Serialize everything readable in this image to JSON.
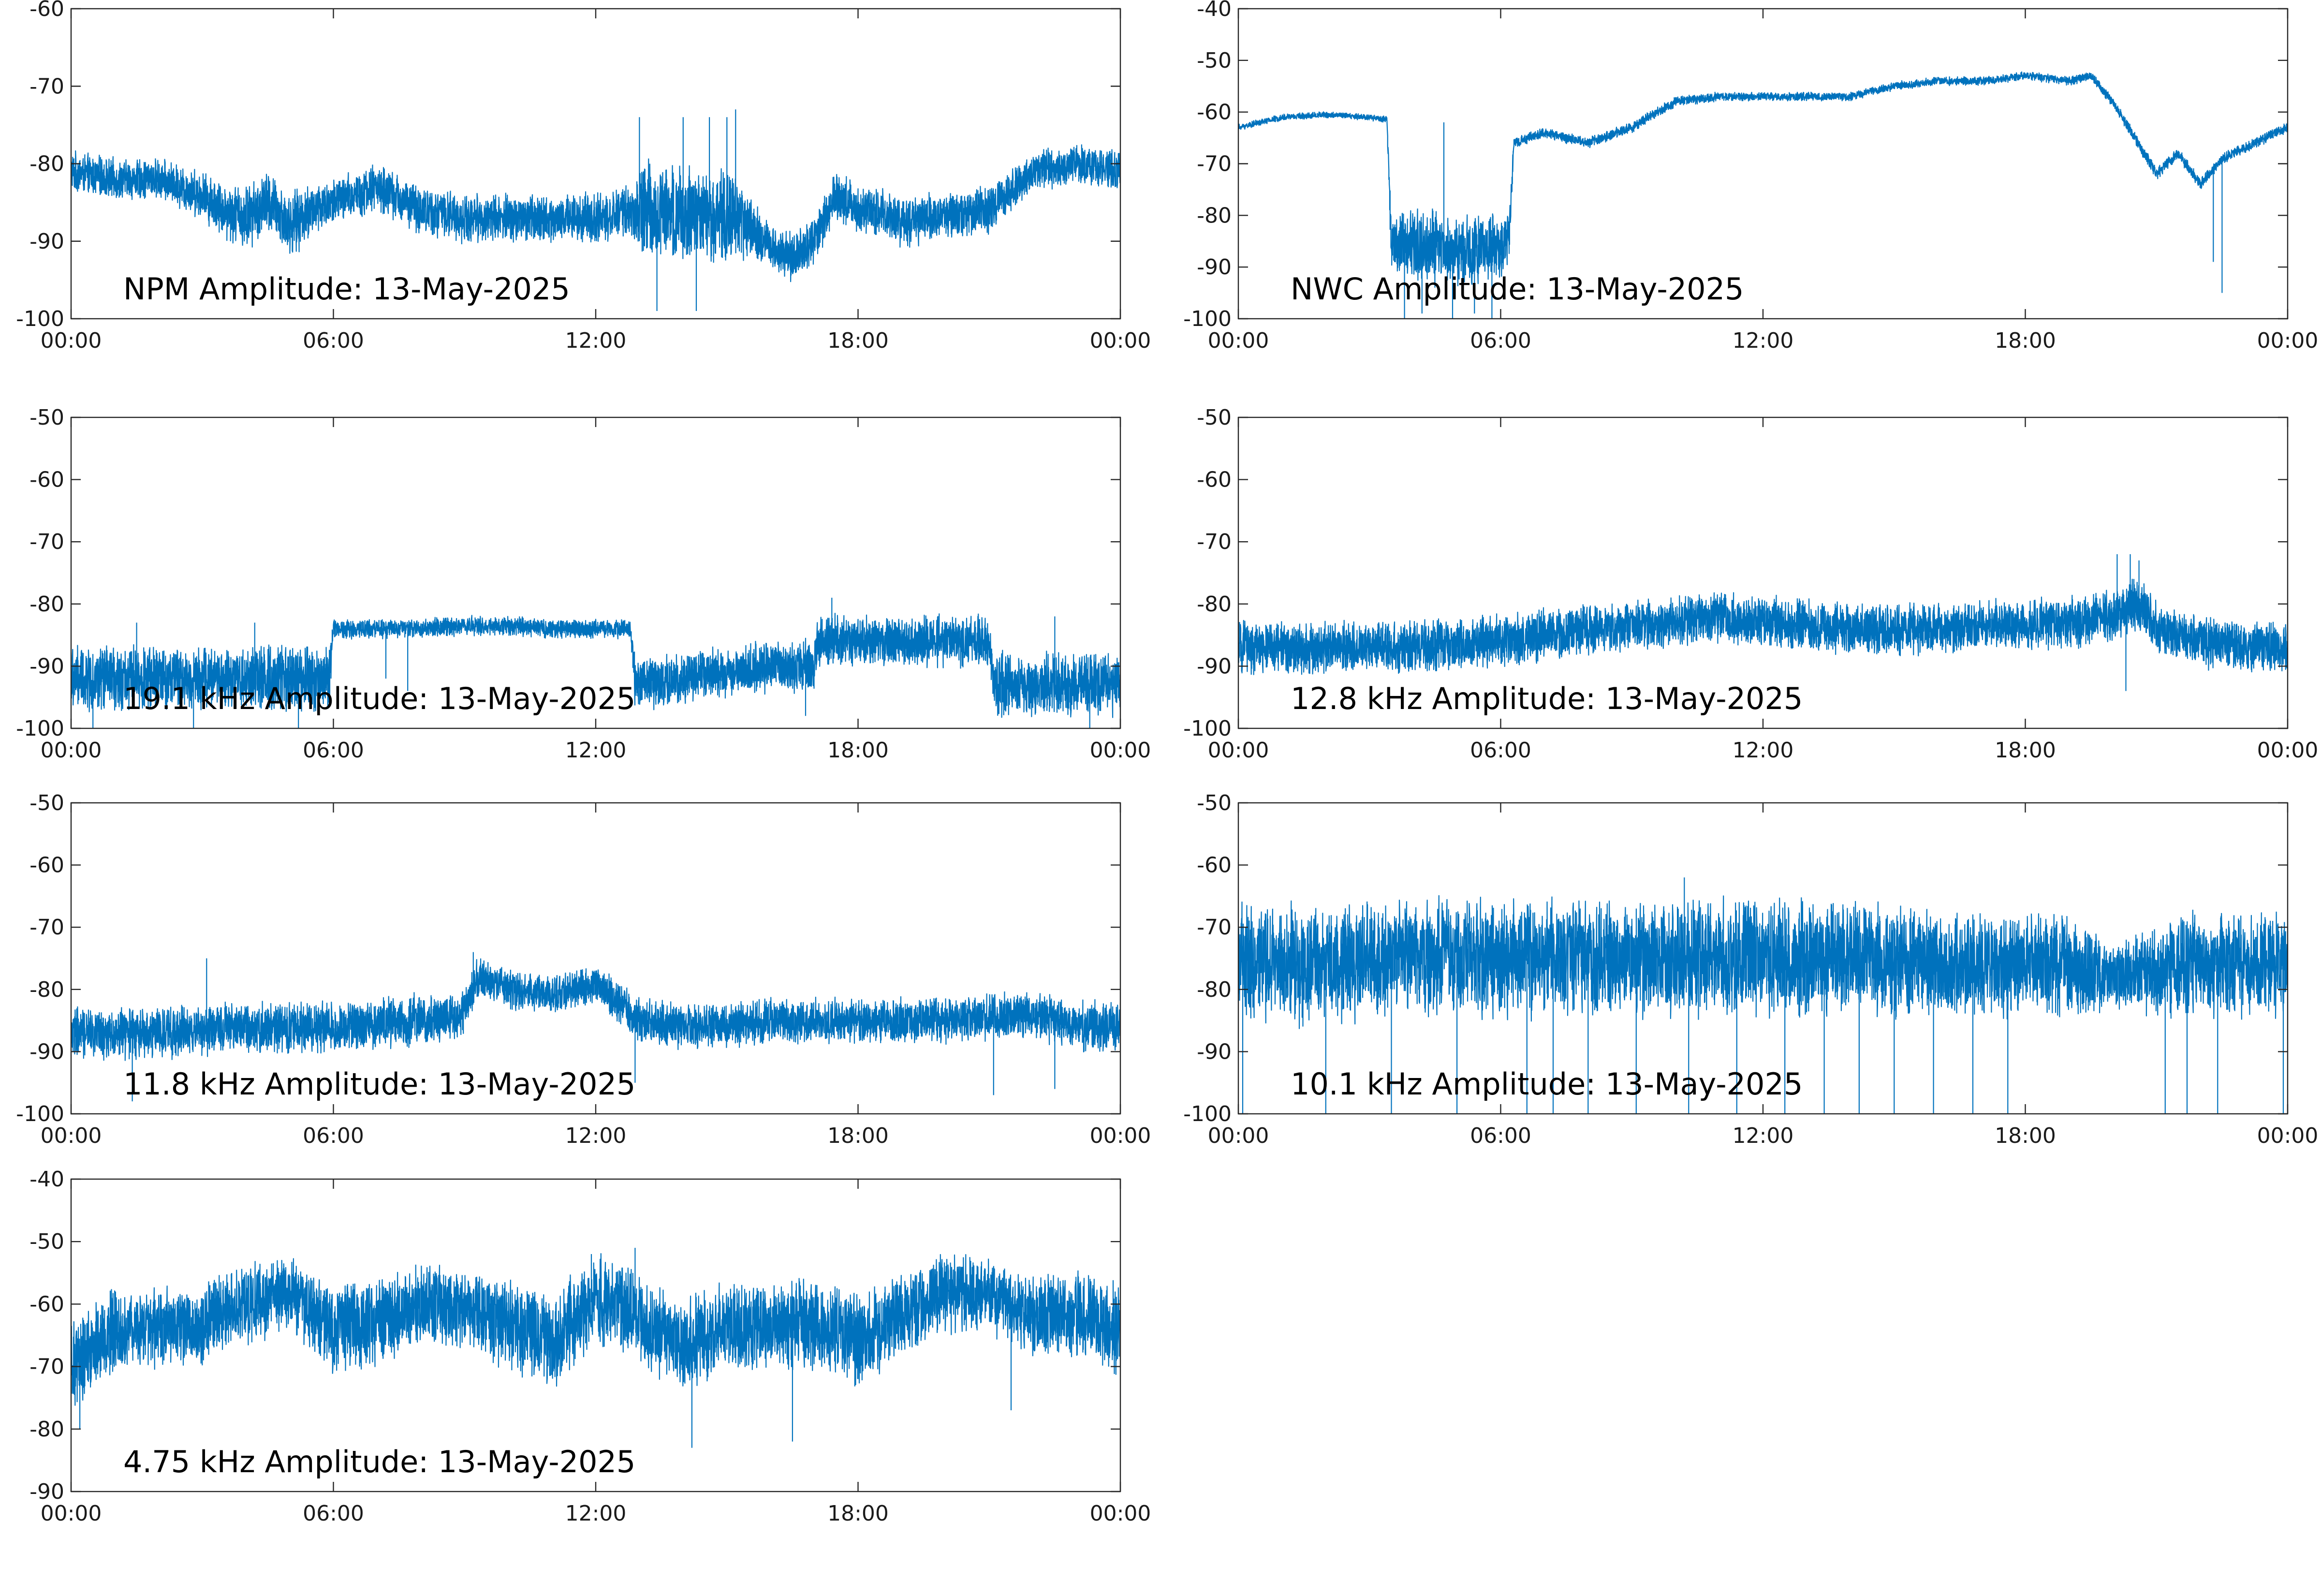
{
  "figure": {
    "series_color": "#0072BD",
    "axis_color": "#262626"
  },
  "chart_data": [
    {
      "type": "line",
      "title": "NPM Amplitude: 13-May-2025",
      "xlabel": "",
      "ylabel": "",
      "x_ticks": [
        "00:00",
        "06:00",
        "12:00",
        "18:00",
        "00:00"
      ],
      "xlim_hours": [
        0,
        24
      ],
      "ylim": [
        -100,
        -60
      ],
      "y_ticks": [
        -60,
        -70,
        -80,
        -90,
        -100
      ],
      "grid": false,
      "series": [
        {
          "hours": [
            0,
            1,
            2,
            3,
            3.5,
            4,
            4.5,
            5,
            5.5,
            6,
            7,
            8,
            9,
            10,
            11,
            12,
            12.8,
            13,
            14,
            15,
            15.5,
            16,
            16.5,
            17,
            17.5,
            18,
            18.5,
            19,
            19.5,
            20,
            21,
            22,
            23,
            24
          ],
          "center": [
            -81,
            -82,
            -82,
            -84,
            -86,
            -87,
            -85,
            -88,
            -86,
            -85,
            -83,
            -86,
            -87,
            -87,
            -87,
            -87,
            -86,
            -86,
            -86,
            -87,
            -88,
            -91,
            -92,
            -90,
            -84,
            -86,
            -86,
            -88,
            -87,
            -87,
            -86,
            -81,
            -80,
            -81
          ],
          "spread": [
            2.5,
            2.5,
            2.5,
            3,
            3.5,
            4,
            4,
            4,
            3.5,
            3,
            3,
            3,
            3,
            3,
            3,
            3,
            3,
            6,
            6,
            6,
            4,
            3,
            3,
            3,
            3,
            3,
            3,
            3,
            3,
            3,
            3,
            2.5,
            2.5,
            2.5
          ],
          "spikes": [
            [
              13.0,
              -74
            ],
            [
              13.4,
              -99
            ],
            [
              14.0,
              -74
            ],
            [
              14.3,
              -99
            ],
            [
              14.6,
              -74
            ],
            [
              15.0,
              -74
            ],
            [
              15.2,
              -73
            ]
          ]
        }
      ]
    },
    {
      "type": "line",
      "title": "NWC Amplitude: 13-May-2025",
      "xlabel": "",
      "ylabel": "",
      "x_ticks": [
        "00:00",
        "06:00",
        "12:00",
        "18:00",
        "00:00"
      ],
      "xlim_hours": [
        0,
        24
      ],
      "ylim": [
        -100,
        -40
      ],
      "y_ticks": [
        -40,
        -50,
        -60,
        -70,
        -80,
        -90,
        -100
      ],
      "grid": false,
      "series": [
        {
          "hours": [
            0,
            1,
            2,
            3,
            3.4,
            3.5,
            4,
            5,
            6,
            6.2,
            6.3,
            7,
            8,
            9,
            10,
            11,
            12,
            13,
            14,
            15,
            16,
            17,
            18,
            19,
            19.5,
            20,
            20.5,
            21,
            21.5,
            22,
            22.5,
            23,
            24
          ],
          "center": [
            -63,
            -61,
            -60.5,
            -61,
            -61.5,
            -85,
            -86,
            -87,
            -86,
            -84,
            -66,
            -64,
            -66,
            -63,
            -58,
            -57,
            -57,
            -57,
            -57,
            -55,
            -54,
            -54,
            -53,
            -54,
            -53,
            -58,
            -65,
            -72,
            -68,
            -74,
            -69,
            -67,
            -63
          ],
          "spread": [
            0.6,
            0.6,
            0.6,
            0.6,
            0.6,
            6,
            7,
            7,
            6,
            4,
            1,
            1,
            1,
            1,
            1,
            0.8,
            0.8,
            0.8,
            0.8,
            0.8,
            0.8,
            0.8,
            0.8,
            0.8,
            0.8,
            1,
            1,
            1.2,
            1.2,
            1.2,
            1,
            1,
            1
          ],
          "spikes": [
            [
              3.8,
              -100
            ],
            [
              4.2,
              -99
            ],
            [
              4.7,
              -62
            ],
            [
              4.9,
              -100
            ],
            [
              5.4,
              -99
            ],
            [
              5.8,
              -100
            ],
            [
              22.3,
              -89
            ],
            [
              22.5,
              -95
            ]
          ]
        }
      ]
    },
    {
      "type": "line",
      "title": "19.1 kHz Amplitude: 13-May-2025",
      "xlabel": "",
      "ylabel": "",
      "x_ticks": [
        "00:00",
        "06:00",
        "12:00",
        "18:00",
        "00:00"
      ],
      "xlim_hours": [
        0,
        24
      ],
      "ylim": [
        -100,
        -50
      ],
      "y_ticks": [
        -50,
        -60,
        -70,
        -80,
        -90,
        -100
      ],
      "grid": false,
      "series": [
        {
          "hours": [
            0,
            1,
            2,
            3,
            4,
            5,
            5.9,
            6,
            7,
            8,
            9,
            10,
            11,
            12,
            12.8,
            12.9,
            14,
            15,
            16,
            17,
            17.1,
            18,
            19,
            20,
            21,
            21.1,
            22,
            23,
            24
          ],
          "center": [
            -92,
            -92,
            -92,
            -92,
            -92,
            -92,
            -92,
            -84,
            -84,
            -84,
            -83.5,
            -83.5,
            -84,
            -84,
            -84,
            -93,
            -92,
            -91,
            -90,
            -90,
            -86,
            -86,
            -86,
            -86,
            -86,
            -93,
            -93,
            -93,
            -93
          ],
          "spread": [
            5,
            5,
            5,
            5,
            5,
            5,
            5,
            1.5,
            1.5,
            1.5,
            1.5,
            1.5,
            1.5,
            1.5,
            1.5,
            4,
            4,
            4,
            4,
            4,
            4,
            4,
            4,
            4,
            4,
            5,
            5,
            5,
            5
          ],
          "spikes": [
            [
              0.5,
              -100
            ],
            [
              1.5,
              -83
            ],
            [
              2.8,
              -100
            ],
            [
              4.2,
              -83
            ],
            [
              5.2,
              -100
            ],
            [
              7.2,
              -92
            ],
            [
              7.7,
              -94
            ],
            [
              16.8,
              -98
            ],
            [
              17.4,
              -79
            ],
            [
              22.5,
              -82
            ],
            [
              23.3,
              -100
            ]
          ]
        }
      ]
    },
    {
      "type": "line",
      "title": "12.8 kHz Amplitude: 13-May-2025",
      "xlabel": "",
      "ylabel": "",
      "x_ticks": [
        "00:00",
        "06:00",
        "12:00",
        "18:00",
        "00:00"
      ],
      "xlim_hours": [
        0,
        24
      ],
      "ylim": [
        -100,
        -50
      ],
      "y_ticks": [
        -50,
        -60,
        -70,
        -80,
        -90,
        -100
      ],
      "grid": false,
      "series": [
        {
          "hours": [
            0,
            2,
            4,
            6,
            8,
            10,
            11,
            12,
            14,
            16,
            18,
            19,
            20,
            20.4,
            20.8,
            21,
            22,
            23,
            24
          ],
          "center": [
            -87,
            -87,
            -87,
            -86,
            -84,
            -83,
            -82,
            -83,
            -84,
            -84,
            -83,
            -83,
            -82,
            -80,
            -81,
            -84,
            -86,
            -87,
            -87
          ],
          "spread": [
            4,
            4,
            4,
            4,
            4,
            4,
            4,
            4,
            4,
            4,
            4,
            4,
            4,
            4,
            4,
            4,
            4,
            4,
            4
          ],
          "spikes": [
            [
              20.1,
              -72
            ],
            [
              20.4,
              -72
            ],
            [
              20.6,
              -73
            ],
            [
              20.3,
              -94
            ]
          ]
        }
      ]
    },
    {
      "type": "line",
      "title": "11.8 kHz Amplitude: 13-May-2025",
      "xlabel": "",
      "ylabel": "",
      "x_ticks": [
        "00:00",
        "06:00",
        "12:00",
        "18:00",
        "00:00"
      ],
      "xlim_hours": [
        0,
        24
      ],
      "ylim": [
        -100,
        -50
      ],
      "y_ticks": [
        -50,
        -60,
        -70,
        -80,
        -90,
        -100
      ],
      "grid": false,
      "series": [
        {
          "hours": [
            0,
            2,
            4,
            6,
            8,
            9,
            9.3,
            10,
            11,
            12,
            13,
            14,
            16,
            18,
            20,
            22,
            23,
            24
          ],
          "center": [
            -87,
            -87,
            -86,
            -86,
            -85,
            -84,
            -78,
            -80,
            -81,
            -79,
            -85,
            -86,
            -85,
            -85,
            -85,
            -84,
            -86,
            -86
          ],
          "spread": [
            4,
            4,
            4,
            4,
            4,
            3.5,
            3,
            3,
            3,
            3,
            3.5,
            3.5,
            3.5,
            3.5,
            3.5,
            3.5,
            4,
            4
          ],
          "spikes": [
            [
              1.4,
              -98
            ],
            [
              3.1,
              -75
            ],
            [
              9.2,
              -74
            ],
            [
              12.9,
              -95
            ],
            [
              21.1,
              -97
            ],
            [
              22.5,
              -96
            ]
          ]
        }
      ]
    },
    {
      "type": "line",
      "title": "10.1 kHz Amplitude: 13-May-2025",
      "xlabel": "",
      "ylabel": "",
      "x_ticks": [
        "00:00",
        "06:00",
        "12:00",
        "18:00",
        "00:00"
      ],
      "xlim_hours": [
        0,
        24
      ],
      "ylim": [
        -100,
        -50
      ],
      "y_ticks": [
        -50,
        -60,
        -70,
        -80,
        -90,
        -100
      ],
      "grid": false,
      "series": [
        {
          "hours": [
            0,
            2,
            4,
            6,
            8,
            10,
            12,
            14,
            16,
            18,
            19,
            20,
            21,
            22,
            23,
            24
          ],
          "center": [
            -76,
            -76,
            -75,
            -75,
            -75,
            -75,
            -75,
            -75,
            -76,
            -76,
            -76,
            -78,
            -77,
            -76,
            -76,
            -76
          ],
          "spread": [
            9,
            9,
            9,
            9,
            9,
            9,
            9,
            9,
            8,
            8,
            8,
            5,
            7,
            8,
            8,
            8
          ],
          "spikes": [
            [
              0.1,
              -100
            ],
            [
              2.0,
              -100
            ],
            [
              3.5,
              -100
            ],
            [
              5.0,
              -100
            ],
            [
              6.6,
              -100
            ],
            [
              7.2,
              -100
            ],
            [
              8.0,
              -100
            ],
            [
              9.1,
              -100
            ],
            [
              10.3,
              -100
            ],
            [
              11.4,
              -100
            ],
            [
              12.5,
              -100
            ],
            [
              13.4,
              -100
            ],
            [
              14.2,
              -100
            ],
            [
              15.0,
              -100
            ],
            [
              15.9,
              -100
            ],
            [
              16.8,
              -100
            ],
            [
              17.6,
              -100
            ],
            [
              21.2,
              -100
            ],
            [
              21.7,
              -100
            ],
            [
              22.4,
              -100
            ],
            [
              23.9,
              -100
            ],
            [
              10.2,
              -62
            ]
          ]
        }
      ]
    },
    {
      "type": "line",
      "title": "4.75 kHz Amplitude: 13-May-2025",
      "xlabel": "",
      "ylabel": "",
      "x_ticks": [
        "00:00",
        "06:00",
        "12:00",
        "18:00",
        "00:00"
      ],
      "xlim_hours": [
        0,
        24
      ],
      "ylim": [
        -90,
        -40
      ],
      "y_ticks": [
        -40,
        -50,
        -60,
        -70,
        -80,
        -90
      ],
      "grid": false,
      "series": [
        {
          "hours": [
            0,
            0.5,
            1,
            2,
            3,
            4,
            5,
            6,
            7,
            8,
            9,
            10,
            11,
            12,
            13,
            14,
            15,
            16,
            17,
            18,
            19,
            20,
            21,
            22,
            23,
            24
          ],
          "center": [
            -70,
            -67,
            -64,
            -64,
            -63,
            -60,
            -58,
            -64,
            -63,
            -60,
            -61,
            -63,
            -66,
            -59,
            -62,
            -67,
            -63,
            -64,
            -63,
            -66,
            -62,
            -58,
            -59,
            -62,
            -61,
            -64
          ],
          "spread": [
            7,
            7,
            6,
            6,
            6,
            6,
            6,
            7,
            7,
            6,
            6,
            7,
            7,
            7,
            7,
            7,
            7,
            7,
            7,
            7,
            6,
            6,
            6,
            6,
            7,
            7
          ],
          "spikes": [
            [
              0.2,
              -80
            ],
            [
              14.2,
              -83
            ],
            [
              11.9,
              -52
            ],
            [
              12.9,
              -51
            ],
            [
              16.5,
              -82
            ],
            [
              21.5,
              -77
            ]
          ]
        }
      ]
    }
  ]
}
